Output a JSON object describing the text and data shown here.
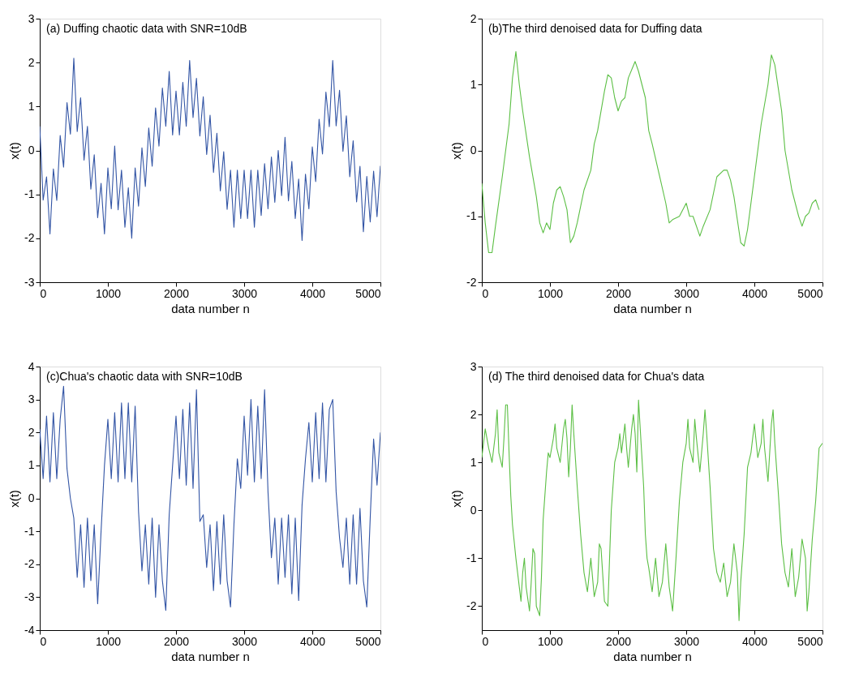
{
  "chart_data": [
    {
      "type": "line",
      "title": "(a) Duffing chaotic data with SNR=10dB",
      "xlabel": "data number n",
      "ylabel": "x(t)",
      "xlim": [
        0,
        5000
      ],
      "ylim": [
        -3,
        3
      ],
      "xticks": [
        0,
        1000,
        2000,
        3000,
        4000,
        5000
      ],
      "yticks": [
        -3,
        -2,
        -1,
        0,
        1,
        2,
        3
      ],
      "grid": false,
      "x": [
        0,
        50,
        100,
        150,
        200,
        250,
        300,
        350,
        400,
        450,
        500,
        550,
        600,
        650,
        700,
        750,
        800,
        850,
        900,
        950,
        1000,
        1050,
        1100,
        1150,
        1200,
        1250,
        1300,
        1350,
        1400,
        1450,
        1500,
        1550,
        1600,
        1650,
        1700,
        1750,
        1800,
        1850,
        1900,
        1950,
        2000,
        2050,
        2100,
        2150,
        2200,
        2250,
        2300,
        2350,
        2400,
        2450,
        2500,
        2550,
        2600,
        2650,
        2700,
        2750,
        2800,
        2850,
        2900,
        2950,
        3000,
        3050,
        3100,
        3150,
        3200,
        3250,
        3300,
        3350,
        3400,
        3450,
        3500,
        3550,
        3600,
        3650,
        3700,
        3750,
        3800,
        3850,
        3900,
        3950,
        4000,
        4050,
        4100,
        4150,
        4200,
        4250,
        4300,
        4350,
        4400,
        4450,
        4500,
        4550,
        4600,
        4650,
        4700,
        4750,
        4800,
        4850,
        4900,
        4950,
        5000
      ],
      "series": [
        {
          "color": "#3355a5",
          "values": [
            0.55,
            -1.13,
            -0.6,
            -1.9,
            -0.42,
            -1.14,
            0.34,
            -0.38,
            1.09,
            0.37,
            2.1,
            0.43,
            1.2,
            -0.22,
            0.55,
            -0.88,
            -0.1,
            -1.53,
            -0.75,
            -1.9,
            -0.4,
            -1.33,
            0.1,
            -1.35,
            -0.45,
            -1.75,
            -0.85,
            -2.0,
            -0.4,
            -1.27,
            0.06,
            -0.82,
            0.51,
            -0.36,
            0.97,
            0.1,
            1.42,
            0.55,
            1.8,
            0.35,
            1.35,
            0.35,
            1.55,
            0.55,
            2.05,
            0.75,
            1.64,
            0.33,
            1.22,
            -0.09,
            0.8,
            -0.5,
            0.39,
            -0.92,
            -0.03,
            -1.34,
            -0.45,
            -1.75,
            -0.45,
            -1.55,
            -0.45,
            -1.55,
            -0.45,
            -1.75,
            -0.45,
            -1.48,
            -0.3,
            -1.33,
            -0.15,
            -1.18,
            0.0,
            -1.03,
            0.3,
            -1.15,
            -0.25,
            -1.55,
            -0.65,
            -2.05,
            -0.54,
            -1.33,
            0.08,
            -0.71,
            0.71,
            -0.08,
            1.33,
            0.54,
            2.05,
            0.56,
            1.37,
            -0.02,
            0.79,
            -0.6,
            0.22,
            -1.17,
            -0.36,
            -1.85,
            -0.59,
            -1.63,
            -0.47,
            -1.51,
            -0.35
          ]
        }
      ]
    },
    {
      "type": "line",
      "title": "(b)The third denoised data for Duffing data",
      "xlabel": "data number n",
      "ylabel": "x(t)",
      "xlim": [
        0,
        5000
      ],
      "ylim": [
        -2,
        2
      ],
      "xticks": [
        0,
        1000,
        2000,
        3000,
        4000,
        5000
      ],
      "yticks": [
        -2,
        -1,
        0,
        1,
        2
      ],
      "grid": false,
      "x": [
        0,
        50,
        100,
        150,
        200,
        300,
        400,
        450,
        500,
        550,
        600,
        700,
        800,
        850,
        900,
        950,
        1000,
        1050,
        1100,
        1150,
        1200,
        1250,
        1300,
        1350,
        1400,
        1500,
        1600,
        1650,
        1700,
        1800,
        1850,
        1900,
        1950,
        2000,
        2050,
        2100,
        2150,
        2250,
        2300,
        2400,
        2450,
        2500,
        2600,
        2700,
        2750,
        2800,
        2900,
        3000,
        3050,
        3100,
        3200,
        3250,
        3350,
        3450,
        3550,
        3600,
        3650,
        3700,
        3800,
        3850,
        3900,
        4000,
        4100,
        4200,
        4250,
        4300,
        4400,
        4450,
        4550,
        4650,
        4700,
        4750,
        4800,
        4850,
        4900,
        4950
      ],
      "series": [
        {
          "color": "#5cbf45",
          "values": [
            -0.5,
            -1.1,
            -1.55,
            -1.55,
            -1.15,
            -0.4,
            0.4,
            1.1,
            1.5,
            1.0,
            0.6,
            -0.1,
            -0.7,
            -1.1,
            -1.25,
            -1.1,
            -1.2,
            -0.8,
            -0.6,
            -0.55,
            -0.7,
            -0.9,
            -1.4,
            -1.3,
            -1.1,
            -0.6,
            -0.3,
            0.1,
            0.3,
            0.9,
            1.15,
            1.1,
            0.8,
            0.6,
            0.75,
            0.8,
            1.1,
            1.35,
            1.2,
            0.8,
            0.3,
            0.1,
            -0.35,
            -0.8,
            -1.1,
            -1.05,
            -1.0,
            -0.8,
            -1.0,
            -1.0,
            -1.3,
            -1.15,
            -0.9,
            -0.4,
            -0.3,
            -0.3,
            -0.45,
            -0.7,
            -1.4,
            -1.45,
            -1.2,
            -0.4,
            0.4,
            1.0,
            1.45,
            1.3,
            0.6,
            0.0,
            -0.6,
            -1.0,
            -1.15,
            -1.0,
            -0.95,
            -0.8,
            -0.75,
            -0.9
          ]
        }
      ]
    },
    {
      "type": "line",
      "title": "(c)Chua's chaotic data with SNR=10dB",
      "xlabel": "data number n",
      "ylabel": "x(t)",
      "xlim": [
        0,
        5000
      ],
      "ylim": [
        -4,
        4
      ],
      "xticks": [
        0,
        1000,
        2000,
        3000,
        4000,
        5000
      ],
      "yticks": [
        -4,
        -3,
        -2,
        -1,
        0,
        1,
        2,
        3,
        4
      ],
      "grid": false,
      "x": [
        0,
        50,
        100,
        150,
        200,
        250,
        300,
        350,
        400,
        450,
        500,
        550,
        600,
        650,
        700,
        750,
        800,
        850,
        900,
        950,
        1000,
        1050,
        1100,
        1150,
        1200,
        1250,
        1300,
        1350,
        1400,
        1450,
        1500,
        1550,
        1600,
        1650,
        1700,
        1750,
        1800,
        1850,
        1900,
        1950,
        2000,
        2050,
        2100,
        2150,
        2200,
        2250,
        2300,
        2350,
        2400,
        2450,
        2500,
        2550,
        2600,
        2650,
        2700,
        2750,
        2800,
        2850,
        2900,
        2950,
        3000,
        3050,
        3100,
        3150,
        3200,
        3250,
        3300,
        3350,
        3400,
        3450,
        3500,
        3550,
        3600,
        3650,
        3700,
        3750,
        3800,
        3850,
        3900,
        3950,
        4000,
        4050,
        4100,
        4150,
        4200,
        4250,
        4300,
        4350,
        4400,
        4450,
        4500,
        4550,
        4600,
        4650,
        4700,
        4750,
        4800,
        4850,
        4900,
        4950,
        5000
      ],
      "series": [
        {
          "color": "#3355a5",
          "values": [
            2.1,
            0.6,
            2.5,
            0.5,
            2.6,
            0.6,
            2.4,
            3.4,
            0.9,
            0.0,
            -0.6,
            -2.4,
            -0.8,
            -2.7,
            -0.6,
            -2.5,
            -0.8,
            -3.2,
            -1.0,
            1.0,
            2.4,
            0.6,
            2.6,
            0.5,
            2.9,
            0.6,
            2.9,
            0.5,
            2.8,
            -0.4,
            -2.2,
            -0.8,
            -2.6,
            -0.6,
            -3.0,
            -0.8,
            -2.5,
            -3.4,
            -0.5,
            1.0,
            2.5,
            0.6,
            2.7,
            0.4,
            2.9,
            0.3,
            3.3,
            -0.7,
            -0.5,
            -2.1,
            -0.8,
            -2.8,
            -0.7,
            -2.6,
            -0.5,
            -2.5,
            -3.3,
            -0.8,
            1.2,
            0.3,
            2.5,
            0.7,
            3.0,
            0.5,
            2.8,
            0.6,
            3.3,
            0.2,
            -1.8,
            -0.6,
            -2.6,
            -0.6,
            -2.4,
            -0.5,
            -2.9,
            -0.6,
            -3.1,
            -0.2,
            1.2,
            2.3,
            0.5,
            2.6,
            0.6,
            2.9,
            0.5,
            2.7,
            3.0,
            0.2,
            -1.2,
            -2.1,
            -0.6,
            -2.6,
            -0.5,
            -2.6,
            -0.3,
            -2.5,
            -3.3,
            -0.6,
            1.8,
            0.4,
            2.0
          ]
        }
      ]
    },
    {
      "type": "line",
      "title": "(d) The third denoised data for Chua's data",
      "xlabel": "data number n",
      "ylabel": "x(t)",
      "xlim": [
        0,
        5000
      ],
      "ylim": [
        -2.5,
        3
      ],
      "xticks": [
        0,
        1000,
        2000,
        3000,
        4000,
        5000
      ],
      "yticks": [
        -2,
        -1,
        0,
        1,
        2,
        3
      ],
      "grid": false,
      "x": [
        0,
        50,
        100,
        150,
        200,
        225,
        250,
        300,
        325,
        350,
        375,
        400,
        425,
        450,
        500,
        550,
        575,
        600,
        625,
        650,
        700,
        725,
        750,
        775,
        800,
        850,
        875,
        900,
        950,
        975,
        1000,
        1050,
        1075,
        1100,
        1150,
        1200,
        1225,
        1250,
        1275,
        1300,
        1325,
        1350,
        1400,
        1450,
        1500,
        1550,
        1600,
        1650,
        1700,
        1725,
        1750,
        1800,
        1850,
        1875,
        1900,
        1950,
        2000,
        2025,
        2050,
        2100,
        2125,
        2150,
        2200,
        2225,
        2250,
        2275,
        2300,
        2325,
        2375,
        2400,
        2425,
        2450,
        2500,
        2550,
        2600,
        2650,
        2700,
        2750,
        2800,
        2850,
        2900,
        2950,
        3000,
        3025,
        3050,
        3100,
        3125,
        3150,
        3200,
        3250,
        3275,
        3300,
        3350,
        3400,
        3450,
        3500,
        3550,
        3600,
        3650,
        3700,
        3750,
        3775,
        3800,
        3850,
        3900,
        3950,
        4000,
        4050,
        4100,
        4125,
        4150,
        4200,
        4250,
        4275,
        4300,
        4350,
        4400,
        4450,
        4500,
        4550,
        4600,
        4650,
        4700,
        4750,
        4775,
        4800,
        4850,
        4900,
        4950,
        5000
      ],
      "series": [
        {
          "color": "#5cbf45",
          "values": [
            1.1,
            1.7,
            1.3,
            1.0,
            1.6,
            2.1,
            1.2,
            0.9,
            1.5,
            2.2,
            2.2,
            1.2,
            0.3,
            -0.3,
            -1.0,
            -1.6,
            -1.9,
            -1.3,
            -1.0,
            -1.6,
            -2.1,
            -1.5,
            -0.8,
            -0.9,
            -2.0,
            -2.2,
            -1.4,
            -0.2,
            0.8,
            1.2,
            1.1,
            1.5,
            1.8,
            1.3,
            1.0,
            1.7,
            1.9,
            1.5,
            0.7,
            1.3,
            2.2,
            1.6,
            0.5,
            -0.5,
            -1.3,
            -1.7,
            -1.0,
            -1.8,
            -1.5,
            -0.7,
            -0.8,
            -1.9,
            -2.0,
            -1.0,
            0.0,
            1.0,
            1.3,
            1.6,
            1.2,
            1.8,
            1.3,
            0.9,
            1.7,
            2.0,
            1.6,
            0.8,
            2.3,
            1.7,
            0.5,
            -0.5,
            -1.0,
            -1.2,
            -1.7,
            -1.0,
            -1.8,
            -1.5,
            -0.7,
            -1.6,
            -2.1,
            -1.0,
            0.2,
            1.0,
            1.4,
            1.9,
            1.3,
            1.0,
            1.9,
            1.5,
            0.8,
            1.6,
            2.1,
            1.6,
            0.5,
            -0.8,
            -1.3,
            -1.5,
            -1.1,
            -1.8,
            -1.5,
            -0.7,
            -1.3,
            -2.3,
            -1.5,
            -0.5,
            0.9,
            1.2,
            1.8,
            1.1,
            1.4,
            1.9,
            1.3,
            0.6,
            1.8,
            2.1,
            1.4,
            0.4,
            -0.7,
            -1.3,
            -1.6,
            -0.8,
            -1.8,
            -1.4,
            -0.6,
            -1.0,
            -2.1,
            -1.7,
            -0.6,
            0.2,
            1.3,
            1.4
          ]
        }
      ]
    }
  ]
}
